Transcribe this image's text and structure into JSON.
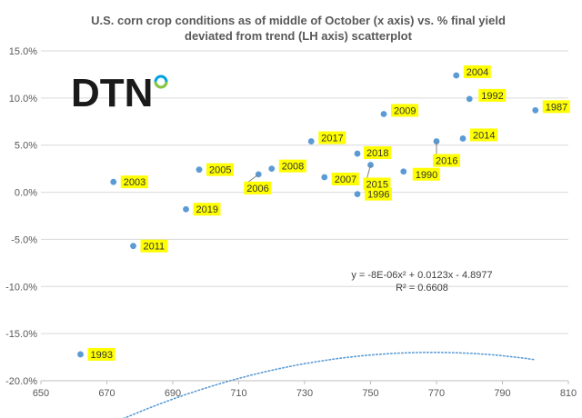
{
  "chart_data": {
    "type": "scatter",
    "title_lines": [
      "U.S. corn crop conditions as of middle of October (x axis) vs. % final yield",
      "deviated from trend (LH axis) scatterplot"
    ],
    "xlim": [
      650,
      810
    ],
    "ylim": [
      -20,
      15
    ],
    "x_ticks": [
      650,
      670,
      690,
      710,
      730,
      750,
      770,
      790,
      810
    ],
    "y_ticks": [
      15,
      10,
      5,
      0,
      -5,
      -10,
      -15,
      -20
    ],
    "y_tick_labels": [
      "15.0%",
      "10.0%",
      "5.0%",
      "0.0%",
      "-5.0%",
      "-10.0%",
      "-15.0%",
      "-20.0%"
    ],
    "grid": "horizontal",
    "marker_color": "#5b9bd5",
    "label_fill": "#ffff00",
    "points": [
      {
        "label": "1987",
        "x": 800,
        "y": 8.7
      },
      {
        "label": "1990",
        "x": 760,
        "y": 2.2
      },
      {
        "label": "1992",
        "x": 780,
        "y": 9.9
      },
      {
        "label": "1993",
        "x": 662,
        "y": -17.2
      },
      {
        "label": "1996",
        "x": 746,
        "y": -0.2
      },
      {
        "label": "2003",
        "x": 672,
        "y": 1.1
      },
      {
        "label": "2004",
        "x": 776,
        "y": 12.4
      },
      {
        "label": "2005",
        "x": 698,
        "y": 2.4
      },
      {
        "label": "2006",
        "x": 716,
        "y": 1.9
      },
      {
        "label": "2007",
        "x": 736,
        "y": 1.6
      },
      {
        "label": "2008",
        "x": 720,
        "y": 2.5
      },
      {
        "label": "2009",
        "x": 754,
        "y": 8.3
      },
      {
        "label": "2011",
        "x": 678,
        "y": -5.7
      },
      {
        "label": "2014",
        "x": 778,
        "y": 5.7
      },
      {
        "label": "2015",
        "x": 750,
        "y": 2.9
      },
      {
        "label": "2016",
        "x": 770,
        "y": 5.4
      },
      {
        "label": "2017",
        "x": 732,
        "y": 5.4
      },
      {
        "label": "2018",
        "x": 746,
        "y": 4.1
      },
      {
        "label": "2019",
        "x": 694,
        "y": -1.8
      }
    ],
    "trendline": {
      "type": "polynomial",
      "a": -8e-06,
      "b": 0.0123,
      "c": -4.8977,
      "x_range": [
        662,
        800
      ],
      "color": "#5b9bd5",
      "equation": "y = -8E-06x² + 0.0123x - 4.8977",
      "r_squared": "R² = 0.6608"
    },
    "logo": {
      "text": "DTN",
      "colors": [
        "#00a3e0",
        "#8dc63f",
        "#1a1a1a"
      ]
    }
  }
}
